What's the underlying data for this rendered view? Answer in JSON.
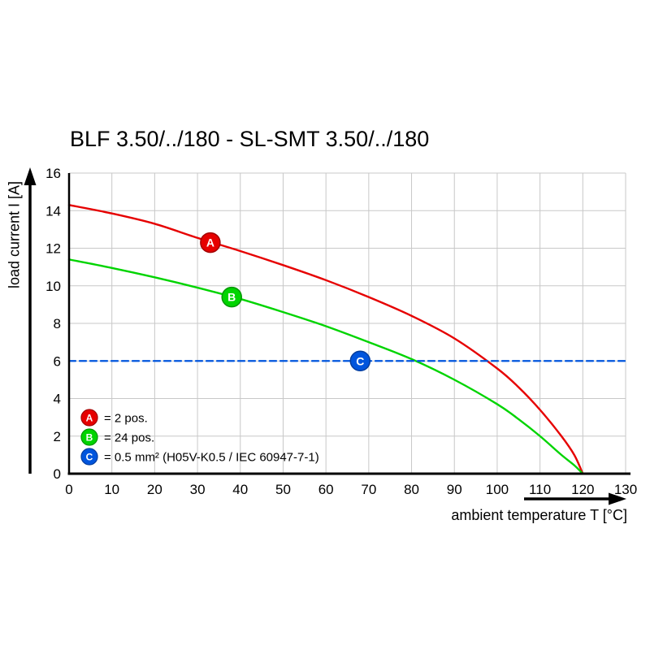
{
  "chart_data": {
    "type": "line",
    "title": "BLF 3.50/../180 - SL-SMT 3.50/../180",
    "xlabel": "ambient temperature T [°C]",
    "ylabel": "load current I [A]",
    "xlim": [
      0,
      130
    ],
    "ylim": [
      0,
      16
    ],
    "xticks": [
      0,
      10,
      20,
      30,
      40,
      50,
      60,
      70,
      80,
      90,
      100,
      110,
      120,
      130
    ],
    "yticks": [
      0,
      2,
      4,
      6,
      8,
      10,
      12,
      14,
      16
    ],
    "grid": true,
    "grid_color": "#c8c8c8",
    "legend_position": "bottom-left",
    "series": [
      {
        "name": "A",
        "label": "2 pos.",
        "color": "#e60000",
        "style": "solid",
        "points": [
          [
            0,
            14.3
          ],
          [
            10,
            13.85
          ],
          [
            20,
            13.3
          ],
          [
            30,
            12.55
          ],
          [
            40,
            11.85
          ],
          [
            50,
            11.1
          ],
          [
            60,
            10.3
          ],
          [
            70,
            9.4
          ],
          [
            80,
            8.4
          ],
          [
            90,
            7.2
          ],
          [
            100,
            5.6
          ],
          [
            105,
            4.6
          ],
          [
            110,
            3.4
          ],
          [
            115,
            2.0
          ],
          [
            118,
            1.0
          ],
          [
            120,
            0
          ]
        ]
      },
      {
        "name": "B",
        "label": "24 pos.",
        "color": "#00d400",
        "style": "solid",
        "points": [
          [
            0,
            11.4
          ],
          [
            10,
            10.95
          ],
          [
            20,
            10.45
          ],
          [
            30,
            9.9
          ],
          [
            40,
            9.3
          ],
          [
            50,
            8.6
          ],
          [
            60,
            7.85
          ],
          [
            70,
            7.0
          ],
          [
            80,
            6.1
          ],
          [
            90,
            5.0
          ],
          [
            100,
            3.7
          ],
          [
            105,
            2.9
          ],
          [
            110,
            2.0
          ],
          [
            115,
            1.0
          ],
          [
            118,
            0.45
          ],
          [
            120,
            0
          ]
        ]
      },
      {
        "name": "C",
        "label": "0.5 mm² (H05V-K0.5 / IEC 60947-7-1)",
        "color": "#0055dd",
        "style": "dashed",
        "points": [
          [
            0,
            6
          ],
          [
            130,
            6
          ]
        ]
      }
    ],
    "markers": [
      {
        "letter": "A",
        "x": 33,
        "y": 12.3,
        "color": "#e60000",
        "edge": "#a30000"
      },
      {
        "letter": "B",
        "x": 38,
        "y": 9.4,
        "color": "#00d400",
        "edge": "#009600"
      },
      {
        "letter": "C",
        "x": 68,
        "y": 6.0,
        "color": "#0055dd",
        "edge": "#003c9e"
      }
    ],
    "legend": [
      {
        "letter": "A",
        "color": "#e60000",
        "edge": "#a30000",
        "text": "= 2 pos."
      },
      {
        "letter": "B",
        "color": "#00d400",
        "edge": "#009600",
        "text": "= 24 pos."
      },
      {
        "letter": "C",
        "color": "#0055dd",
        "edge": "#003c9e",
        "text": "= 0.5 mm² (H05V-K0.5 / IEC 60947-7-1)"
      }
    ]
  }
}
